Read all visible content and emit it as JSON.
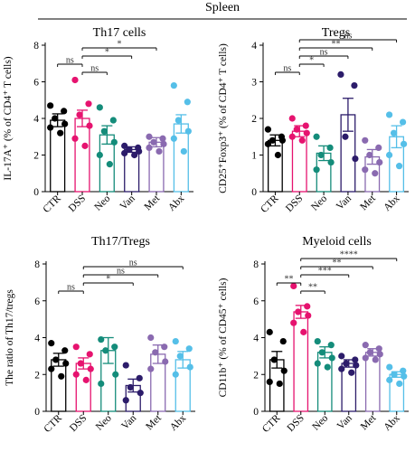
{
  "figure_title": "Spleen",
  "chart_data": [
    {
      "id": "th17",
      "type": "bar",
      "title": "Th17 cells",
      "ylabel": "IL-17A⁺ (% of CD4⁺ T cells)",
      "categories": [
        "CTR",
        "DSS",
        "Neo",
        "Van",
        "Met",
        "Abx"
      ],
      "ylim": [
        0,
        8
      ],
      "yticks": [
        "0",
        "2",
        "4",
        "6",
        "8"
      ],
      "values": [
        3.9,
        4.0,
        3.1,
        2.3,
        2.7,
        3.7
      ],
      "errors": [
        0.35,
        0.45,
        0.5,
        0.15,
        0.25,
        0.5
      ],
      "points": [
        [
          4.7,
          4.4,
          4.0,
          3.7,
          3.5,
          3.2
        ],
        [
          6.1,
          4.8,
          4.2,
          3.6,
          2.9,
          2.5
        ],
        [
          4.6,
          3.9,
          3.3,
          2.7,
          2.0,
          1.5
        ],
        [
          2.5,
          2.4,
          2.3,
          2.2,
          2.1,
          2.0
        ],
        [
          3.0,
          2.9,
          2.7,
          2.6,
          2.4,
          2.2
        ],
        [
          5.8,
          4.9,
          3.9,
          3.3,
          2.9,
          2.2
        ]
      ],
      "comparisons": [
        {
          "from": "DSS",
          "to": "Neo",
          "label": "ns"
        },
        {
          "from": "CTR",
          "to": "DSS",
          "label": "ns"
        },
        {
          "from": "DSS",
          "to": "Van",
          "label": "*"
        },
        {
          "from": "DSS",
          "to": "Met",
          "label": "*"
        }
      ]
    },
    {
      "id": "tregs",
      "type": "bar",
      "title": "Tregs",
      "ylabel": "CD25⁺Foxp3⁺ (% of CD4⁺ T cells)",
      "categories": [
        "CTR",
        "DSS",
        "Neo",
        "Van",
        "Met",
        "Abx"
      ],
      "ylim": [
        0,
        4
      ],
      "yticks": [
        "0",
        "1",
        "2",
        "3",
        "4"
      ],
      "values": [
        1.4,
        1.65,
        1.05,
        2.1,
        0.95,
        1.5
      ],
      "errors": [
        0.15,
        0.15,
        0.2,
        0.45,
        0.2,
        0.3
      ],
      "points": [
        [
          1.7,
          1.5,
          1.4,
          1.4,
          1.3,
          1.0
        ],
        [
          2.0,
          1.8,
          1.7,
          1.6,
          1.5,
          1.4
        ],
        [
          1.5,
          1.2,
          1.0,
          0.8,
          0.6
        ],
        [
          3.2,
          2.9,
          1.5,
          0.9
        ],
        [
          1.4,
          1.2,
          1.0,
          0.8,
          0.6,
          0.5
        ],
        [
          2.1,
          1.9,
          1.6,
          1.3,
          1.0,
          0.7
        ]
      ],
      "comparisons": [
        {
          "from": "CTR",
          "to": "DSS",
          "label": "ns"
        },
        {
          "from": "DSS",
          "to": "Neo",
          "label": "*"
        },
        {
          "from": "DSS",
          "to": "Van",
          "label": "ns"
        },
        {
          "from": "DSS",
          "to": "Met",
          "label": "**"
        },
        {
          "from": "DSS",
          "to": "Abx",
          "label": "ns"
        }
      ]
    },
    {
      "id": "ratio",
      "type": "bar",
      "title": "Th17/Tregs",
      "ylabel": "The ratio of Th17/tregs",
      "categories": [
        "CTR",
        "DSS",
        "Neo",
        "Van",
        "Met",
        "Abx"
      ],
      "ylim": [
        0,
        8
      ],
      "yticks": [
        "0",
        "2",
        "4",
        "6",
        "8"
      ],
      "values": [
        2.8,
        2.6,
        3.3,
        1.4,
        3.1,
        2.8
      ],
      "errors": [
        0.35,
        0.3,
        0.7,
        0.35,
        0.5,
        0.45
      ],
      "points": [
        [
          3.7,
          3.3,
          2.8,
          2.6,
          2.3,
          1.9
        ],
        [
          3.5,
          3.1,
          2.6,
          2.3,
          2.0,
          1.7
        ],
        [
          3.9,
          3.5,
          3.3,
          2.0,
          1.5
        ],
        [
          2.5,
          1.8,
          1.3,
          1.0,
          0.6
        ],
        [
          4.0,
          3.5,
          3.2,
          2.7,
          2.3
        ],
        [
          3.8,
          3.4,
          3.0,
          2.4,
          2.0
        ]
      ],
      "comparisons": [
        {
          "from": "CTR",
          "to": "DSS",
          "label": "ns"
        },
        {
          "from": "DSS",
          "to": "Van",
          "label": "*"
        },
        {
          "from": "DSS",
          "to": "Met",
          "label": "ns"
        },
        {
          "from": "DSS",
          "to": "Abx",
          "label": "ns"
        }
      ]
    },
    {
      "id": "myeloid",
      "type": "bar",
      "title": "Myeloid cells",
      "ylabel": "CD11b⁺ (% of CD45⁺ cells)",
      "categories": [
        "CTR",
        "DSS",
        "Neo",
        "Van",
        "Met",
        "Abx"
      ],
      "ylim": [
        0,
        8
      ],
      "yticks": [
        "0",
        "2",
        "4",
        "6",
        "8"
      ],
      "values": [
        2.8,
        5.4,
        3.2,
        2.6,
        3.2,
        2.0
      ],
      "errors": [
        0.45,
        0.35,
        0.3,
        0.2,
        0.2,
        0.15
      ],
      "points": [
        [
          4.3,
          3.8,
          2.8,
          2.2,
          1.6,
          1.5
        ],
        [
          6.8,
          5.7,
          5.4,
          5.2,
          4.8,
          4.3
        ],
        [
          3.8,
          3.6,
          3.2,
          2.9,
          2.6,
          2.4
        ],
        [
          3.0,
          2.8,
          2.6,
          2.5,
          2.3,
          2.1
        ],
        [
          3.6,
          3.4,
          3.2,
          3.1,
          2.9,
          2.8
        ],
        [
          2.4,
          2.2,
          2.0,
          1.9,
          1.7,
          1.5
        ]
      ],
      "comparisons": [
        {
          "from": "DSS",
          "to": "Neo",
          "label": "**"
        },
        {
          "from": "CTR",
          "to": "DSS",
          "label": "**"
        },
        {
          "from": "DSS",
          "to": "Van",
          "label": "***"
        },
        {
          "from": "DSS",
          "to": "Met",
          "label": "**"
        },
        {
          "from": "DSS",
          "to": "Abx",
          "label": "****"
        }
      ]
    }
  ],
  "colors": {
    "CTR": "#000000",
    "DSS": "#e6136f",
    "Neo": "#148c7a",
    "Van": "#2c1c6a",
    "Met": "#8a6ab0",
    "Abx": "#55bfe8"
  }
}
